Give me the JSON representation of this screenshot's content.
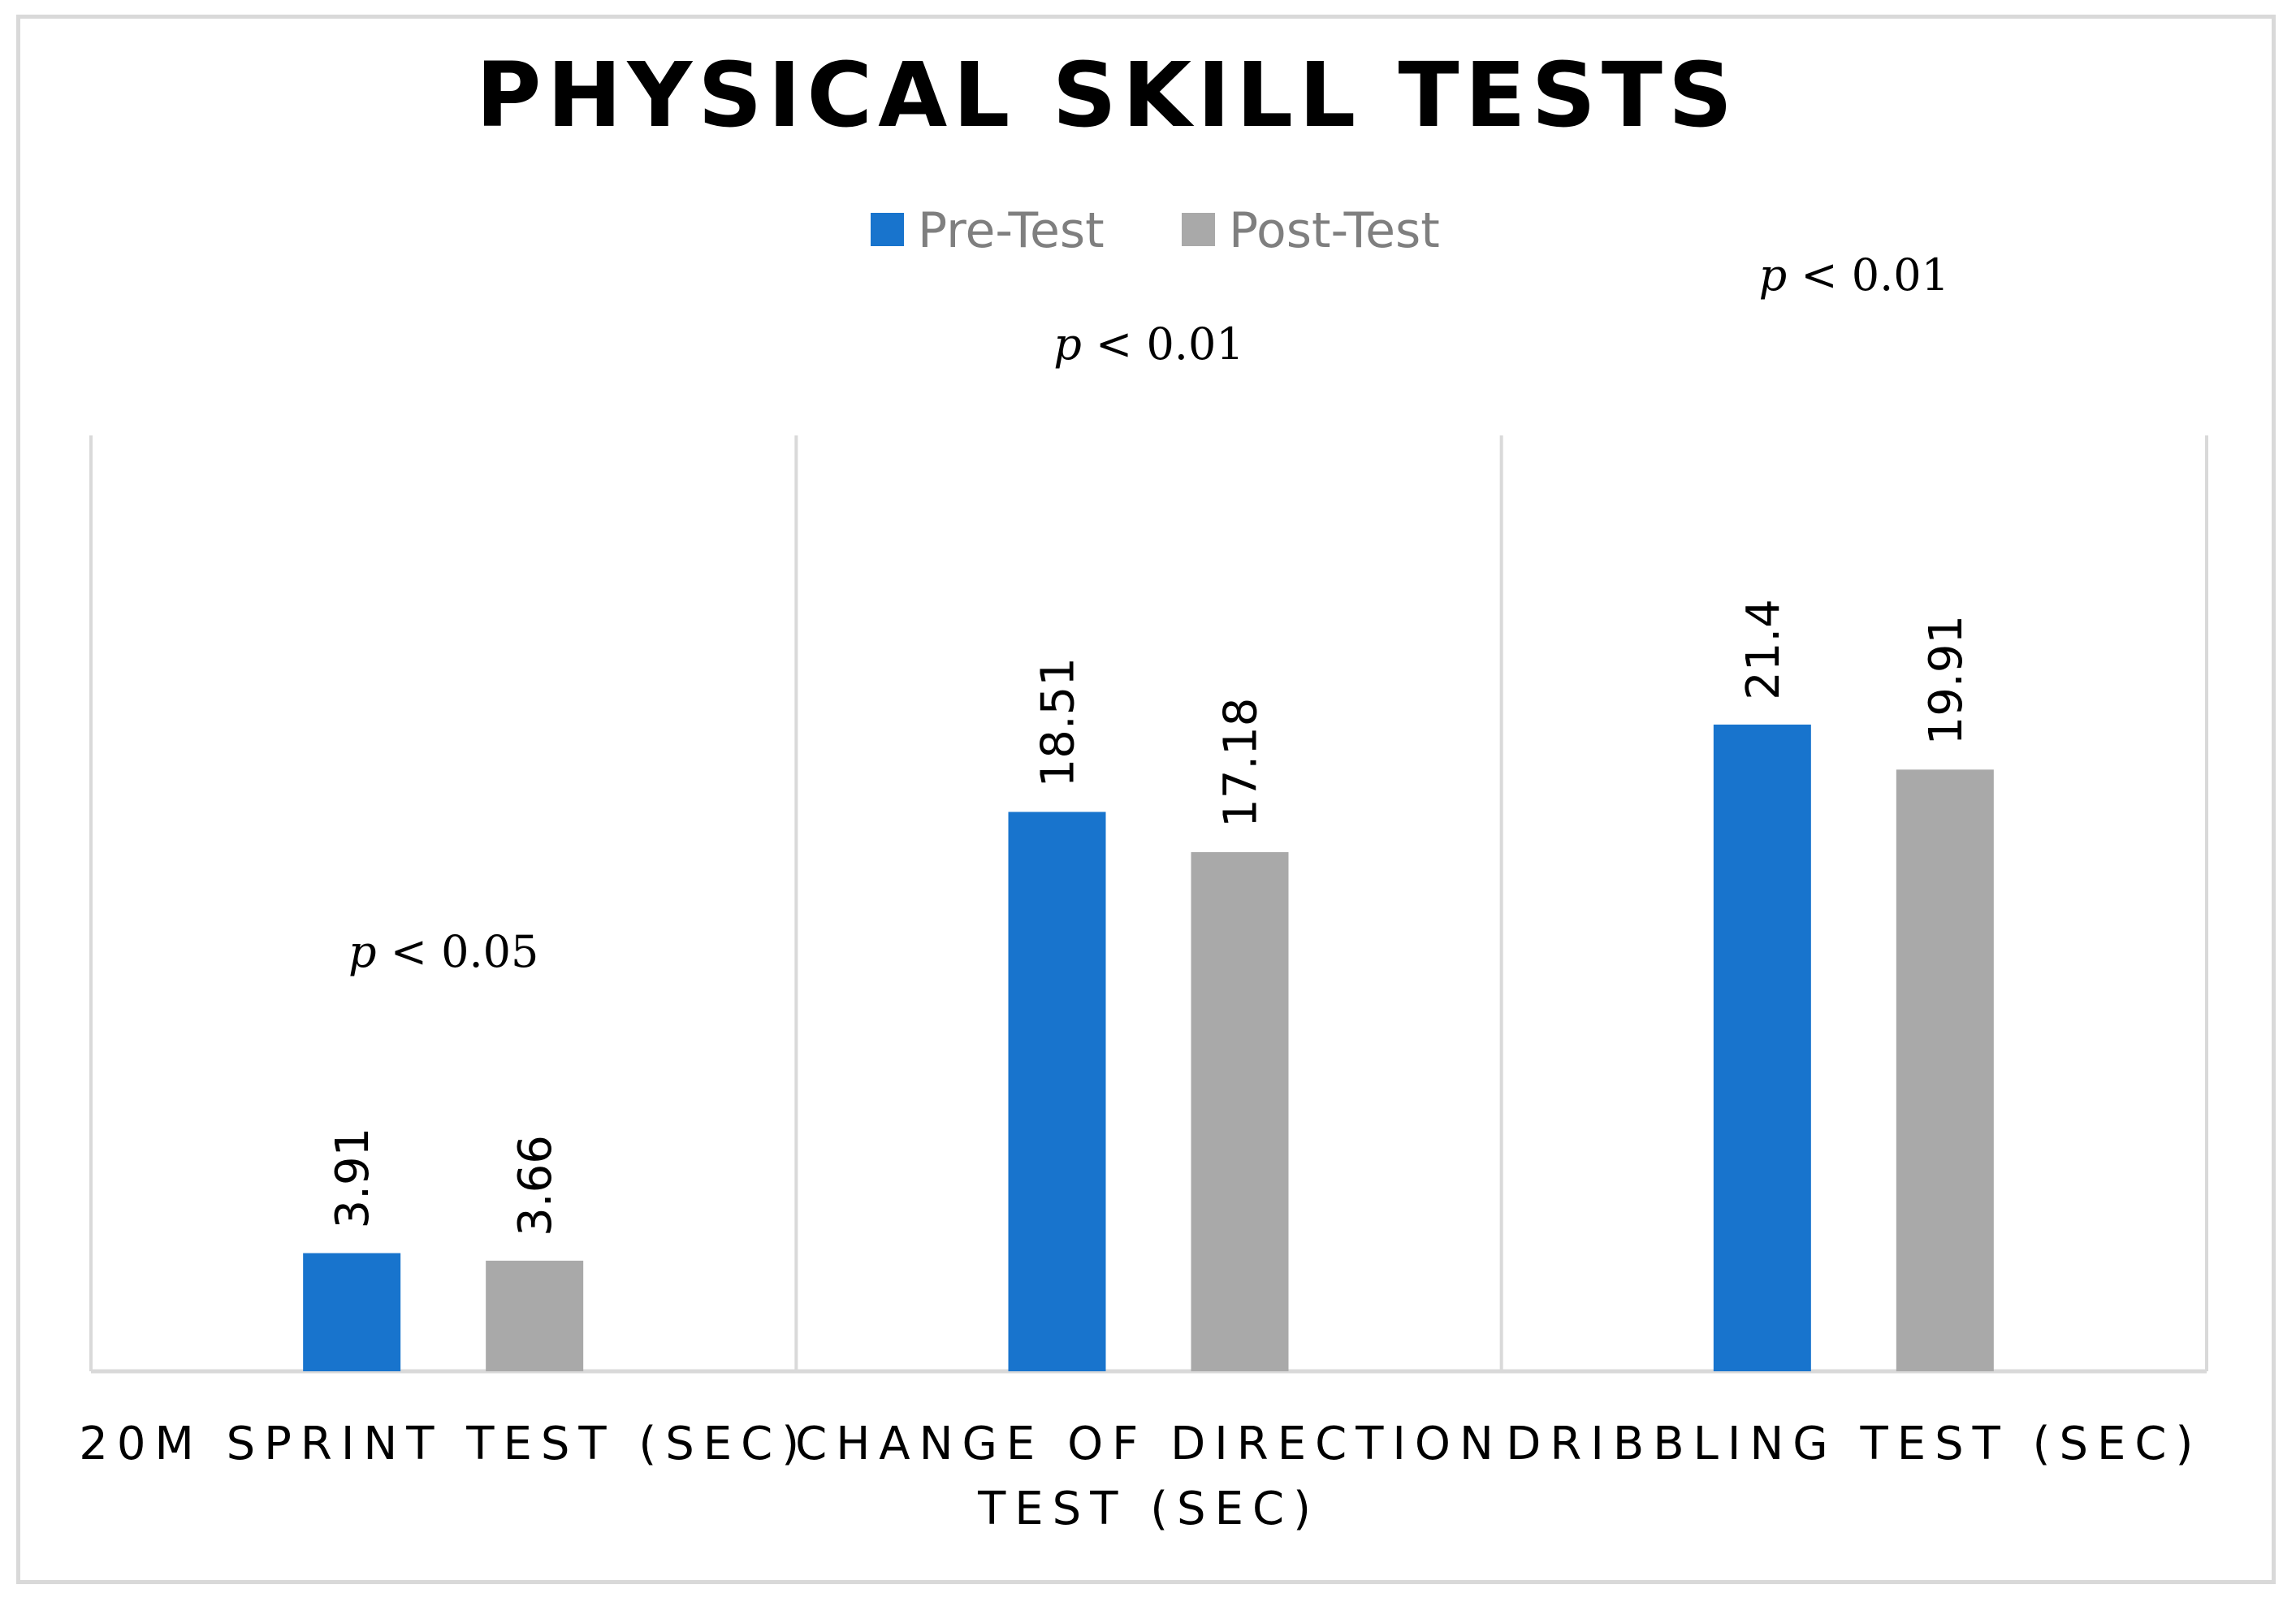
{
  "chart_data": {
    "type": "bar",
    "title": "PHYSICAL SKILL TESTS",
    "categories": [
      [
        "20M SPRINT TEST (SEC)"
      ],
      [
        "CHANGE OF DIRECTION",
        "TEST (SEC)"
      ],
      [
        "DRIBBLING TEST (SEC)"
      ]
    ],
    "series": [
      {
        "name": "Pre-Test",
        "color": "#1874cd",
        "values": [
          3.91,
          18.51,
          21.4
        ],
        "labels": [
          "3.91",
          "18.51",
          "21.4"
        ]
      },
      {
        "name": "Post-Test",
        "color": "#a9a9a9",
        "values": [
          3.66,
          17.18,
          19.91
        ],
        "labels": [
          "3.66",
          "17.18",
          "19.91"
        ]
      }
    ],
    "annotations": [
      {
        "italic": "p",
        "rest": " < 0.05"
      },
      {
        "italic": "p",
        "rest": " < 0.01"
      },
      {
        "italic": "p",
        "rest": " < 0.01"
      }
    ],
    "legend": "top-center",
    "ylim": [
      0,
      25
    ],
    "grid": false,
    "xlabel": "",
    "ylabel": ""
  }
}
